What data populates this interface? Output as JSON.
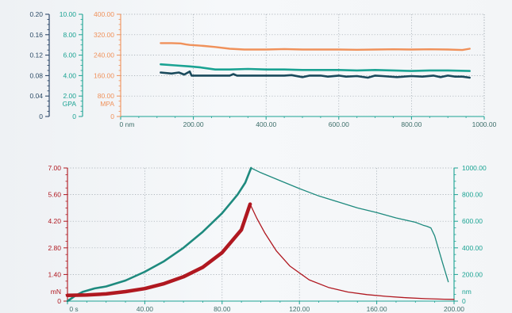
{
  "chart_data": [
    {
      "type": "line",
      "name": "top-chart",
      "xlabel": "nm",
      "x_ticks": [
        "0",
        "200.00",
        "400.00",
        "600.00",
        "800.00",
        "1000.00"
      ],
      "xlim": [
        0,
        1000
      ],
      "axes": [
        {
          "id": "axis-plain",
          "color": "#1e3a5f",
          "unit": "",
          "ylim": [
            0,
            0.2
          ],
          "ticks": [
            "0",
            "0.04",
            "0.08",
            "0.12",
            "0.16",
            "0.20"
          ]
        },
        {
          "id": "axis-gpa",
          "color": "#1aa393",
          "unit": "GPA",
          "ylim": [
            0,
            10
          ],
          "ticks": [
            "0",
            "2.00",
            "4.00",
            "6.00",
            "8.00",
            "10.00"
          ]
        },
        {
          "id": "axis-mpa",
          "color": "#f0915a",
          "unit": "MPA",
          "ylim": [
            0,
            400
          ],
          "ticks": [
            "0",
            "80.00",
            "160.00",
            "240.00",
            "320.00",
            "400.00"
          ]
        }
      ],
      "series": [
        {
          "axis": "axis-mpa",
          "color": "#f0915a",
          "width": 2.4,
          "x": [
            110,
            140,
            165,
            180,
            190,
            210,
            230,
            260,
            300,
            340,
            400,
            450,
            500,
            550,
            600,
            650,
            700,
            750,
            800,
            850,
            900,
            940,
            960
          ],
          "y": [
            287,
            287,
            286,
            282,
            280,
            278,
            276,
            272,
            265,
            262,
            262,
            264,
            262,
            262,
            262,
            261,
            262,
            263,
            262,
            263,
            262,
            260,
            265
          ]
        },
        {
          "axis": "axis-gpa",
          "color": "#1aa393",
          "width": 2.6,
          "x": [
            110,
            150,
            190,
            220,
            260,
            300,
            350,
            400,
            450,
            500,
            550,
            600,
            650,
            700,
            750,
            800,
            850,
            900,
            960
          ],
          "y": [
            5.1,
            5.0,
            4.9,
            4.8,
            4.6,
            4.6,
            4.65,
            4.6,
            4.6,
            4.55,
            4.55,
            4.55,
            4.5,
            4.55,
            4.5,
            4.45,
            4.5,
            4.5,
            4.45
          ]
        },
        {
          "axis": "axis-gpa",
          "color": "#1a4a5c",
          "width": 2.6,
          "x": [
            110,
            140,
            160,
            175,
            190,
            195,
            200,
            230,
            260,
            300,
            310,
            320,
            360,
            400,
            430,
            450,
            470,
            500,
            520,
            550,
            570,
            600,
            620,
            650,
            680,
            700,
            720,
            760,
            800,
            830,
            860,
            880,
            900,
            920,
            940,
            960
          ],
          "y": [
            4.3,
            4.2,
            4.3,
            4.1,
            4.4,
            4.0,
            4.0,
            4.0,
            4.0,
            4.0,
            4.15,
            4.0,
            4.0,
            4.0,
            4.0,
            4.0,
            4.05,
            3.85,
            4.0,
            4.0,
            3.9,
            4.0,
            3.9,
            3.95,
            3.8,
            4.0,
            3.95,
            3.85,
            3.95,
            3.9,
            4.0,
            3.85,
            4.0,
            3.9,
            3.9,
            3.8
          ]
        }
      ]
    },
    {
      "type": "line",
      "name": "bottom-chart",
      "xlabel": "s",
      "x_ticks": [
        "0",
        "40.00",
        "80.00",
        "120.00",
        "160.00",
        "200.00"
      ],
      "xlim": [
        0,
        200
      ],
      "axes": [
        {
          "id": "axis-mn",
          "color": "#b01820",
          "unit": "mN",
          "ylim": [
            0,
            7
          ],
          "ticks": [
            "0",
            "1.40",
            "2.80",
            "4.20",
            "5.60",
            "7.00"
          ]
        },
        {
          "id": "axis-nm",
          "color": "#1aa393",
          "unit": "nm",
          "ylim": [
            0,
            1000
          ],
          "ticks": [
            "0",
            "200.00",
            "400.00",
            "600.00",
            "800.00",
            "1000.00"
          ]
        }
      ],
      "series": [
        {
          "axis": "axis-nm",
          "color": "#1e8a7e",
          "width": 2.6,
          "x": [
            0,
            4,
            8,
            14,
            20,
            30,
            40,
            50,
            60,
            70,
            80,
            88,
            92,
            95
          ],
          "y": [
            0,
            40,
            70,
            95,
            110,
            155,
            220,
            300,
            400,
            520,
            660,
            800,
            890,
            1000
          ]
        },
        {
          "axis": "axis-nm",
          "color": "#1e8a7e",
          "width": 1.3,
          "x": [
            95,
            100,
            110,
            120,
            130,
            140,
            150,
            160,
            170,
            180,
            184,
            186,
            188,
            190,
            194,
            197
          ],
          "y": [
            1000,
            965,
            905,
            845,
            790,
            745,
            700,
            665,
            625,
            592,
            570,
            562,
            550,
            490,
            290,
            145
          ]
        },
        {
          "axis": "axis-mn",
          "color": "#b01820",
          "width": 4.5,
          "x": [
            0,
            10,
            20,
            30,
            40,
            50,
            60,
            70,
            80,
            90,
            94.5
          ],
          "y": [
            0.3,
            0.32,
            0.38,
            0.5,
            0.66,
            0.92,
            1.28,
            1.78,
            2.55,
            3.75,
            5.1
          ]
        },
        {
          "axis": "axis-mn",
          "color": "#b01820",
          "width": 1.3,
          "x": [
            94.5,
            98,
            102,
            108,
            115,
            125,
            135,
            145,
            155,
            165,
            175,
            185,
            195,
            200
          ],
          "y": [
            5.1,
            4.35,
            3.6,
            2.65,
            1.85,
            1.12,
            0.72,
            0.48,
            0.34,
            0.25,
            0.18,
            0.13,
            0.1,
            0.09
          ]
        }
      ]
    }
  ]
}
